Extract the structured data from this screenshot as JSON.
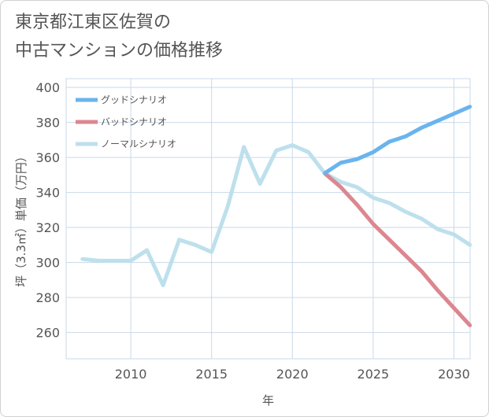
{
  "title": "東京都江東区佐賀の\n中古マンションの価格推移",
  "colors": {
    "good": "#6ab4ee",
    "bad": "#dc8790",
    "normal": "#bde0ec",
    "grid": "#c9d9e8",
    "text": "#555555"
  },
  "chart_data": {
    "type": "line",
    "title": "東京都江東区佐賀の中古マンションの価格推移",
    "xlabel": "年",
    "ylabel": "坪（3.3㎡）単価（万円）",
    "xlim": [
      2006,
      2031
    ],
    "ylim": [
      245,
      405
    ],
    "x_ticks": [
      2010,
      2015,
      2020,
      2025,
      2030
    ],
    "y_ticks": [
      260,
      280,
      300,
      320,
      340,
      360,
      380,
      400
    ],
    "grid": true,
    "legend_position": "top-left",
    "series": [
      {
        "name": "グッドシナリオ",
        "color_key": "good",
        "x": [
          2022,
          2023,
          2024,
          2025,
          2026,
          2027,
          2028,
          2029,
          2030,
          2031
        ],
        "y": [
          351,
          357,
          359,
          363,
          369,
          372,
          377,
          381,
          385,
          389
        ]
      },
      {
        "name": "バッドシナリオ",
        "color_key": "bad",
        "x": [
          2022,
          2023,
          2024,
          2025,
          2026,
          2027,
          2028,
          2029,
          2030,
          2031
        ],
        "y": [
          351,
          343,
          333,
          322,
          313,
          304,
          295,
          284,
          274,
          264
        ]
      },
      {
        "name": "ノーマルシナリオ",
        "color_key": "normal",
        "x": [
          2007,
          2008,
          2009,
          2010,
          2011,
          2012,
          2013,
          2014,
          2015,
          2016,
          2017,
          2018,
          2019,
          2020,
          2021,
          2022,
          2023,
          2024,
          2025,
          2026,
          2027,
          2028,
          2029,
          2030,
          2031
        ],
        "y": [
          302,
          301,
          301,
          301,
          307,
          287,
          313,
          310,
          306,
          332,
          366,
          345,
          364,
          367,
          363,
          351,
          346,
          343,
          337,
          334,
          329,
          325,
          319,
          316,
          310
        ]
      }
    ]
  }
}
